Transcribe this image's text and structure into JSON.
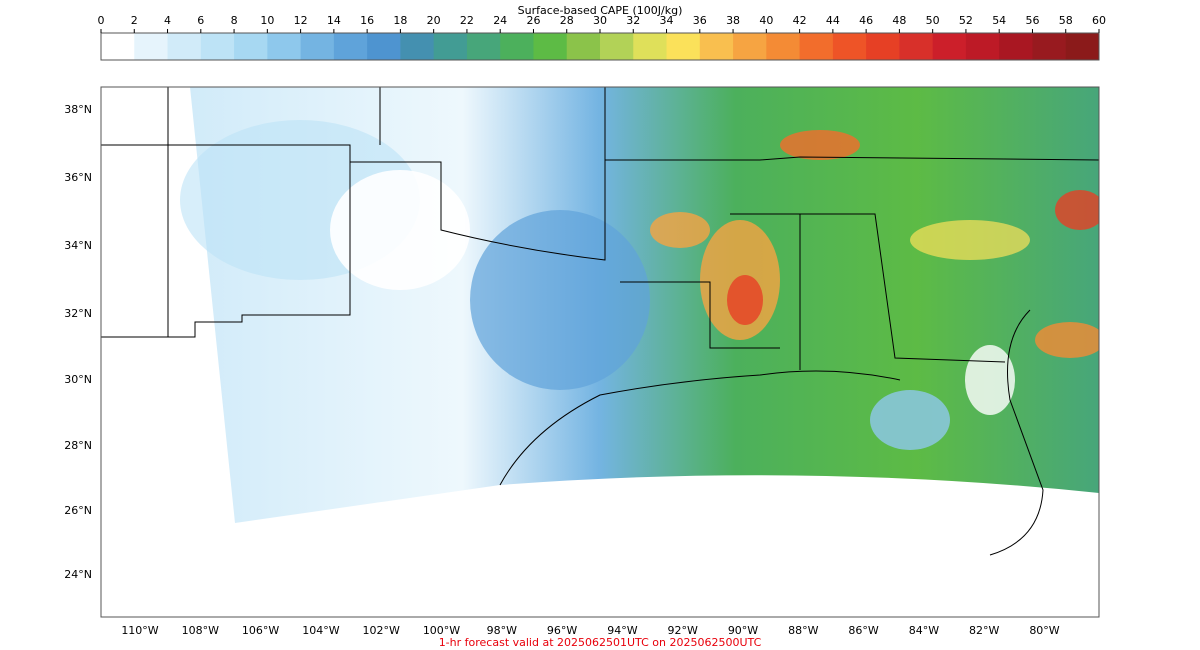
{
  "colorbar": {
    "label": "Surface-based CAPE (100J/kg)",
    "ticks": [
      0,
      2,
      4,
      6,
      8,
      10,
      12,
      14,
      16,
      18,
      20,
      22,
      24,
      26,
      28,
      30,
      32,
      34,
      36,
      38,
      40,
      42,
      44,
      46,
      48,
      50,
      52,
      54,
      56,
      58,
      60
    ],
    "colors": [
      "#ffffff",
      "#e6f4fc",
      "#d1ebf9",
      "#bde3f6",
      "#a7d8f2",
      "#8ec8ec",
      "#74b4e2",
      "#5fa3da",
      "#4e94d0",
      "#4490b0",
      "#429c94",
      "#47a67a",
      "#4cb05c",
      "#5dbb45",
      "#8bc34a",
      "#b2d257",
      "#dfe05a",
      "#fbe15a",
      "#f9bf4f",
      "#f6a442",
      "#f48b35",
      "#f26d2c",
      "#ee5427",
      "#e64025",
      "#d8302a",
      "#cc1f2a",
      "#bd1a26",
      "#a91722",
      "#981a1f",
      "#8b1a1a"
    ]
  },
  "map": {
    "lat_labels": [
      "38°N",
      "36°N",
      "34°N",
      "32°N",
      "30°N",
      "28°N",
      "26°N",
      "24°N"
    ],
    "lon_labels": [
      "110°W",
      "108°W",
      "106°W",
      "104°W",
      "102°W",
      "100°W",
      "98°W",
      "96°W",
      "94°W",
      "92°W",
      "90°W",
      "88°W",
      "86°W",
      "84°W",
      "82°W",
      "80°W"
    ]
  },
  "footer": "1-hr forecast valid at 2025062501UTC on 2025062500UTC"
}
